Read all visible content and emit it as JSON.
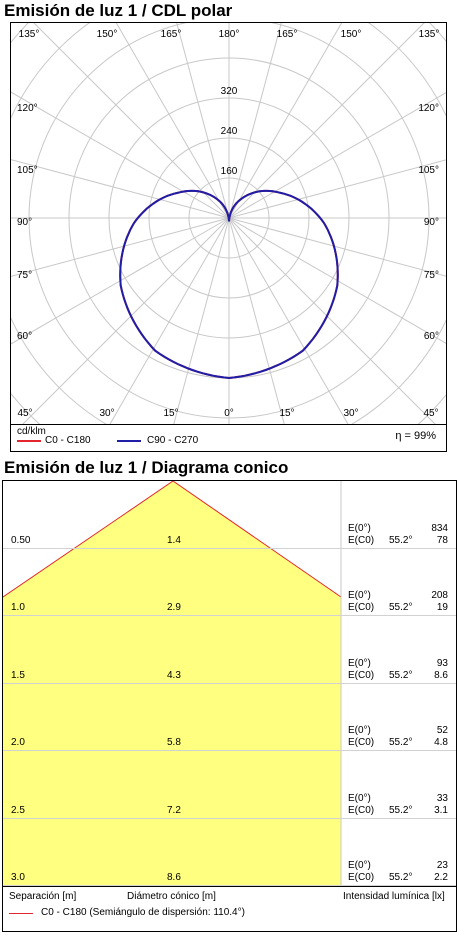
{
  "polar": {
    "title": "Emisión de luz 1 / CDL polar",
    "unit": "cd/klm",
    "efficiency": "η = 99%",
    "legend": [
      {
        "label": "C0 - C180",
        "color": "#e3262d"
      },
      {
        "label": "C90 - C270",
        "color": "#1e1ea6"
      }
    ],
    "radial_ticks": [
      "160",
      "240",
      "320"
    ],
    "angle_labels": {
      "top": [
        "135°",
        "150°",
        "165°",
        "180°",
        "165°",
        "150°",
        "135°"
      ],
      "sides": [
        "120°",
        "105°",
        "90°",
        "75°",
        "60°"
      ],
      "bottom": [
        "45°",
        "30°",
        "15°",
        "0°",
        "15°",
        "30°",
        "45°"
      ]
    }
  },
  "cone": {
    "title": "Emisión de luz 1 / Diagrama conico",
    "col_separation": "Separación [m]",
    "col_diameter": "Diámetro cónico [m]",
    "col_intensity": "Intensidad lumínica [lx]",
    "legend_label": "C0 - C180 (Semiángulo de dispersión: 110.4°)",
    "legend_color": "#e3262d",
    "fill_color": "#ffff80",
    "e0_label": "E(0°)",
    "ec0_label": "E(C0)",
    "angle": "55.2°",
    "rows": [
      {
        "sep": "0.50",
        "diam": "1.4",
        "e0": "834",
        "ec0": "78"
      },
      {
        "sep": "1.0",
        "diam": "2.9",
        "e0": "208",
        "ec0": "19"
      },
      {
        "sep": "1.5",
        "diam": "4.3",
        "e0": "93",
        "ec0": "8.6"
      },
      {
        "sep": "2.0",
        "diam": "5.8",
        "e0": "52",
        "ec0": "4.8"
      },
      {
        "sep": "2.5",
        "diam": "7.2",
        "e0": "33",
        "ec0": "3.1"
      },
      {
        "sep": "3.0",
        "diam": "8.6",
        "e0": "23",
        "ec0": "2.2"
      }
    ]
  },
  "chart_data": [
    {
      "type": "polar",
      "title": "Emisión de luz 1 / CDL polar",
      "unit": "cd/klm",
      "radial_max": 400,
      "radial_ticks": [
        160,
        240,
        320
      ],
      "series": [
        {
          "name": "C0 - C180",
          "angles_deg": [
            0,
            30,
            60,
            90,
            120,
            150,
            180,
            210,
            240,
            270,
            300,
            330,
            360
          ],
          "values": [
            310,
            295,
            250,
            190,
            120,
            60,
            3,
            60,
            120,
            190,
            250,
            295,
            310
          ]
        },
        {
          "name": "C90 - C270",
          "angles_deg": [
            0,
            30,
            60,
            90,
            120,
            150,
            180,
            210,
            240,
            270,
            300,
            330,
            360
          ],
          "values": [
            310,
            295,
            250,
            190,
            120,
            60,
            3,
            60,
            120,
            190,
            250,
            295,
            310
          ]
        }
      ],
      "efficiency": "η = 99%"
    },
    {
      "type": "table",
      "title": "Emisión de luz 1 / Diagrama conico",
      "columns": [
        "Separación [m]",
        "Diámetro cónico [m]",
        "E(0°) [lx]",
        "E(C0) [lx]"
      ],
      "half_angle": "55.2°",
      "rows": [
        [
          0.5,
          1.4,
          834,
          78
        ],
        [
          1.0,
          2.9,
          208,
          19
        ],
        [
          1.5,
          4.3,
          93,
          8.6
        ],
        [
          2.0,
          5.8,
          52,
          4.8
        ],
        [
          2.5,
          7.2,
          33,
          3.1
        ],
        [
          3.0,
          8.6,
          23,
          2.2
        ]
      ]
    }
  ]
}
